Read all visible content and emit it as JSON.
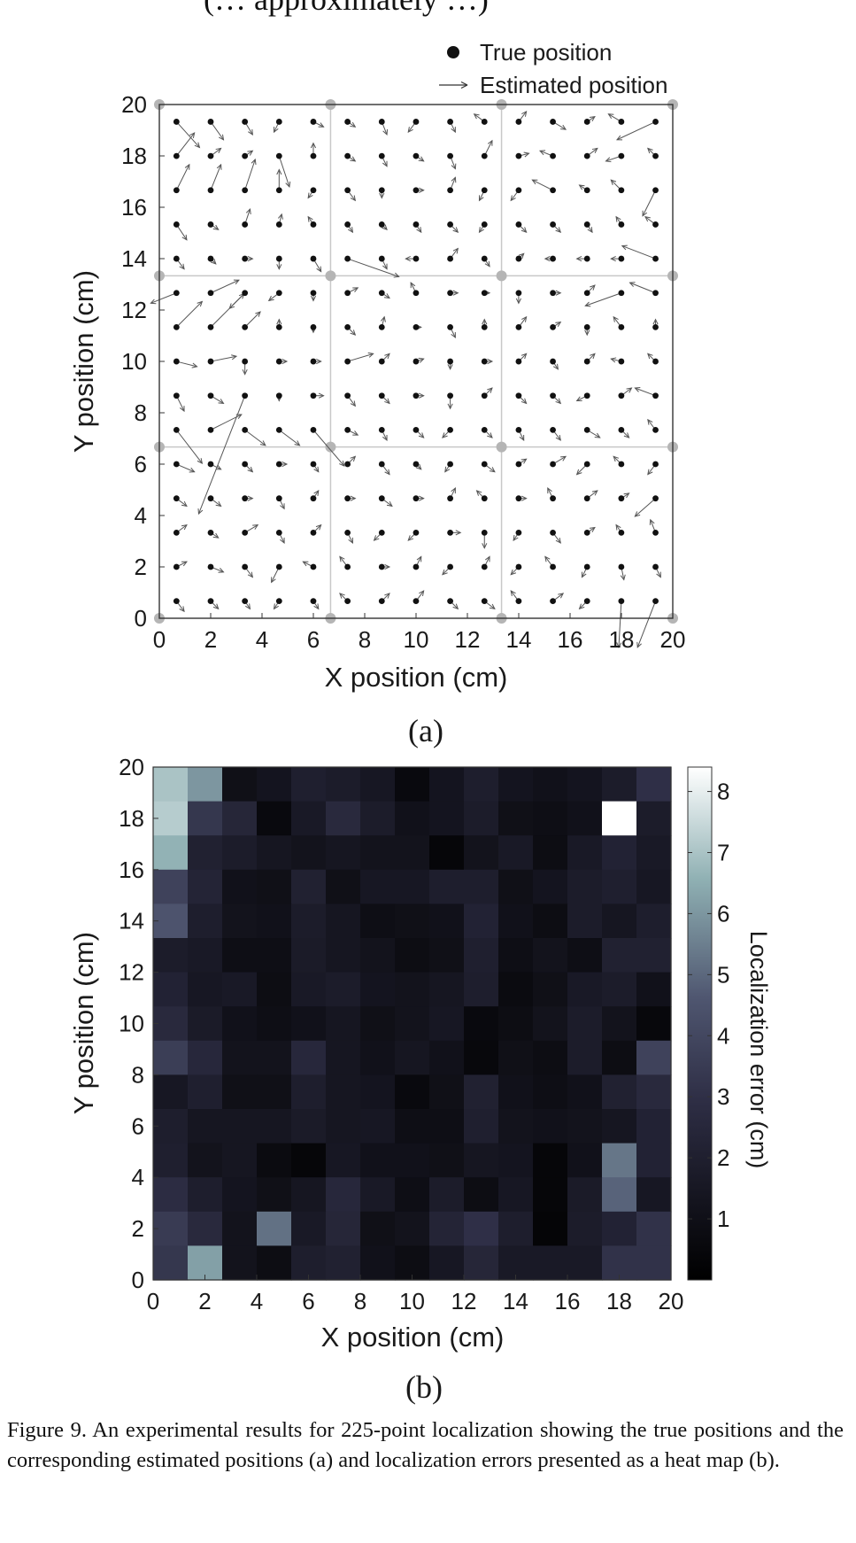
{
  "clipped_header": "(… approximately …)",
  "caption": "Figure 9.   An experimental results for 225-point localization showing the true positions and the corresponding estimated positions (a) and localization errors presented as a heat map (b).",
  "chart_data": [
    {
      "type": "scatter",
      "panel_label": "(a)",
      "title": "",
      "xlabel": "X position (cm)",
      "ylabel": "Y position (cm)",
      "xlim": [
        0,
        20
      ],
      "ylim": [
        0,
        20
      ],
      "xticks": [
        "0",
        "2",
        "4",
        "6",
        "8",
        "10",
        "12",
        "14",
        "16",
        "18",
        "20"
      ],
      "yticks": [
        "0",
        "2",
        "4",
        "6",
        "8",
        "10",
        "12",
        "14",
        "16",
        "18",
        "20"
      ],
      "grid_lines_cm": [
        6.67,
        13.33
      ],
      "legend": {
        "placement": "top-right",
        "entries": [
          "True position",
          "Estimated position"
        ]
      },
      "true_grid": {
        "n": 15,
        "start_cm": 0.667,
        "step_cm": 1.333
      },
      "estimated_offsets_cm": [
        [
          [
            0.9,
            -1.0
          ],
          [
            0.5,
            -0.7
          ],
          [
            0.3,
            -0.5
          ],
          [
            -0.2,
            -0.4
          ],
          [
            0.4,
            -0.2
          ],
          [
            0.3,
            -0.2
          ],
          [
            0.2,
            -0.5
          ],
          [
            -0.3,
            -0.4
          ],
          [
            0.2,
            -0.4
          ],
          [
            -0.4,
            0.3
          ],
          [
            0.3,
            0.4
          ],
          [
            0.5,
            -0.3
          ],
          [
            0.3,
            0.2
          ],
          [
            -0.5,
            0.3
          ],
          [
            -1.5,
            -0.7
          ]
        ],
        [
          [
            0.7,
            0.9
          ],
          [
            0.4,
            0.3
          ],
          [
            0.3,
            0.2
          ],
          [
            0.4,
            -1.2
          ],
          [
            0.0,
            0.5
          ],
          [
            0.3,
            -0.2
          ],
          [
            0.2,
            -0.4
          ],
          [
            0.3,
            -0.2
          ],
          [
            0.2,
            -0.5
          ],
          [
            0.3,
            0.6
          ],
          [
            0.4,
            0.1
          ],
          [
            -0.5,
            0.2
          ],
          [
            0.4,
            0.3
          ],
          [
            -0.6,
            -0.2
          ],
          [
            -0.3,
            0.3
          ]
        ],
        [
          [
            0.5,
            1.0
          ],
          [
            0.4,
            1.0
          ],
          [
            0.4,
            1.2
          ],
          [
            0.0,
            0.8
          ],
          [
            -0.2,
            -0.3
          ],
          [
            0.3,
            -0.4
          ],
          [
            0.0,
            -0.3
          ],
          [
            0.3,
            0.0
          ],
          [
            0.2,
            0.5
          ],
          [
            -0.2,
            -0.4
          ],
          [
            -0.3,
            -0.4
          ],
          [
            -0.8,
            0.4
          ],
          [
            -0.3,
            0.2
          ],
          [
            -0.4,
            0.4
          ],
          [
            -0.5,
            -1.0
          ]
        ],
        [
          [
            0.4,
            -0.6
          ],
          [
            0.3,
            -0.2
          ],
          [
            0.2,
            0.6
          ],
          [
            0.1,
            0.4
          ],
          [
            -0.2,
            0.3
          ],
          [
            0.2,
            -0.3
          ],
          [
            0.2,
            -0.2
          ],
          [
            0.2,
            -0.3
          ],
          [
            0.3,
            -0.3
          ],
          [
            -0.2,
            -0.3
          ],
          [
            0.3,
            -0.3
          ],
          [
            0.3,
            -0.3
          ],
          [
            0.2,
            -0.3
          ],
          [
            -0.2,
            0.3
          ],
          [
            -0.4,
            0.3
          ]
        ],
        [
          [
            0.3,
            -0.4
          ],
          [
            0.2,
            -0.2
          ],
          [
            0.3,
            0.0
          ],
          [
            0.0,
            -0.4
          ],
          [
            0.3,
            -0.5
          ],
          [
            2.0,
            -0.7
          ],
          [
            0.2,
            -0.4
          ],
          [
            -0.4,
            0.0
          ],
          [
            0.3,
            0.4
          ],
          [
            0.2,
            -0.3
          ],
          [
            0.2,
            0.2
          ],
          [
            -0.3,
            0.0
          ],
          [
            -0.4,
            0.0
          ],
          [
            -0.4,
            0.0
          ],
          [
            -1.3,
            0.5
          ]
        ],
        [
          [
            -1.0,
            -0.4
          ],
          [
            1.1,
            0.5
          ],
          [
            -0.6,
            -0.6
          ],
          [
            -0.4,
            -0.3
          ],
          [
            0.0,
            -0.3
          ],
          [
            0.4,
            0.2
          ],
          [
            0.3,
            -0.2
          ],
          [
            -0.2,
            0.4
          ],
          [
            0.3,
            0.0
          ],
          [
            0.2,
            0.0
          ],
          [
            0.0,
            -0.4
          ],
          [
            0.3,
            0.0
          ],
          [
            0.3,
            0.3
          ],
          [
            -1.4,
            -0.5
          ],
          [
            -1.0,
            0.4
          ]
        ],
        [
          [
            1.0,
            1.0
          ],
          [
            1.3,
            1.3
          ],
          [
            0.6,
            0.6
          ],
          [
            0.0,
            0.3
          ],
          [
            0.0,
            -0.2
          ],
          [
            0.3,
            -0.3
          ],
          [
            0.1,
            0.4
          ],
          [
            0.2,
            0.0
          ],
          [
            0.2,
            -0.4
          ],
          [
            0.0,
            0.3
          ],
          [
            0.3,
            0.4
          ],
          [
            0.3,
            0.2
          ],
          [
            0.0,
            -0.3
          ],
          [
            -0.3,
            0.4
          ],
          [
            0.0,
            0.3
          ]
        ],
        [
          [
            0.8,
            -0.2
          ],
          [
            1.0,
            0.2
          ],
          [
            0.0,
            -0.5
          ],
          [
            0.3,
            0.0
          ],
          [
            0.3,
            0.0
          ],
          [
            1.0,
            0.3
          ],
          [
            0.3,
            0.3
          ],
          [
            0.3,
            0.1
          ],
          [
            0.0,
            -0.3
          ],
          [
            0.3,
            0.0
          ],
          [
            0.3,
            0.3
          ],
          [
            0.2,
            -0.3
          ],
          [
            0.3,
            0.3
          ],
          [
            -0.4,
            0.1
          ],
          [
            -0.3,
            0.3
          ]
        ],
        [
          [
            0.3,
            -0.6
          ],
          [
            0.5,
            -0.3
          ],
          [
            -1.8,
            -4.6
          ],
          [
            0.0,
            -0.2
          ],
          [
            0.4,
            0.0
          ],
          [
            0.3,
            -0.4
          ],
          [
            0.3,
            -0.3
          ],
          [
            0.3,
            0.0
          ],
          [
            0.0,
            -0.5
          ],
          [
            0.3,
            0.3
          ],
          [
            0.3,
            -0.3
          ],
          [
            0.3,
            -0.3
          ],
          [
            -0.4,
            -0.2
          ],
          [
            0.4,
            0.3
          ],
          [
            -0.8,
            0.3
          ]
        ],
        [
          [
            1.0,
            -1.3
          ],
          [
            1.2,
            0.6
          ],
          [
            0.8,
            -0.6
          ],
          [
            0.8,
            -0.6
          ],
          [
            1.2,
            -1.4
          ],
          [
            0.4,
            -0.2
          ],
          [
            0.2,
            -0.4
          ],
          [
            0.3,
            -0.3
          ],
          [
            -0.3,
            -0.3
          ],
          [
            0.3,
            -0.3
          ],
          [
            0.2,
            -0.4
          ],
          [
            0.3,
            -0.4
          ],
          [
            0.5,
            -0.3
          ],
          [
            0.3,
            -0.3
          ],
          [
            -0.3,
            0.4
          ]
        ],
        [
          [
            0.7,
            -0.3
          ],
          [
            0.4,
            -0.2
          ],
          [
            0.3,
            -0.3
          ],
          [
            0.3,
            0.0
          ],
          [
            0.2,
            -0.3
          ],
          [
            0.3,
            0.3
          ],
          [
            0.3,
            -0.4
          ],
          [
            0.2,
            -0.2
          ],
          [
            -0.2,
            -0.3
          ],
          [
            0.4,
            -0.3
          ],
          [
            0.3,
            0.2
          ],
          [
            0.5,
            0.3
          ],
          [
            -0.4,
            -0.4
          ],
          [
            -0.3,
            0.3
          ],
          [
            -0.3,
            -0.4
          ]
        ],
        [
          [
            0.4,
            -0.3
          ],
          [
            0.4,
            -0.3
          ],
          [
            0.3,
            0.0
          ],
          [
            0.2,
            -0.4
          ],
          [
            0.2,
            0.3
          ],
          [
            0.3,
            0.0
          ],
          [
            0.4,
            -0.3
          ],
          [
            0.3,
            0.0
          ],
          [
            0.2,
            0.4
          ],
          [
            -0.3,
            0.3
          ],
          [
            0.3,
            0.0
          ],
          [
            -0.2,
            0.4
          ],
          [
            0.4,
            0.3
          ],
          [
            0.3,
            0.2
          ],
          [
            -0.8,
            -0.7
          ]
        ],
        [
          [
            0.4,
            0.3
          ],
          [
            0.3,
            -0.2
          ],
          [
            0.5,
            0.3
          ],
          [
            0.2,
            -0.4
          ],
          [
            0.3,
            0.3
          ],
          [
            0.2,
            -0.4
          ],
          [
            -0.3,
            -0.3
          ],
          [
            -0.3,
            -0.3
          ],
          [
            0.4,
            0.0
          ],
          [
            0.0,
            -0.6
          ],
          [
            -0.2,
            -0.3
          ],
          [
            0.3,
            -0.4
          ],
          [
            0.3,
            0.2
          ],
          [
            -0.2,
            0.3
          ],
          [
            -0.2,
            0.5
          ]
        ],
        [
          [
            0.4,
            0.2
          ],
          [
            0.5,
            -0.2
          ],
          [
            0.3,
            -0.4
          ],
          [
            -0.3,
            -0.6
          ],
          [
            -0.4,
            0.2
          ],
          [
            -0.3,
            0.4
          ],
          [
            0.3,
            0.0
          ],
          [
            0.2,
            0.4
          ],
          [
            -0.3,
            -0.3
          ],
          [
            0.2,
            0.4
          ],
          [
            -0.3,
            -0.3
          ],
          [
            -0.3,
            0.4
          ],
          [
            -0.2,
            -0.4
          ],
          [
            0.1,
            -0.5
          ],
          [
            0.2,
            -0.4
          ]
        ],
        [
          [
            0.3,
            -0.4
          ],
          [
            0.3,
            -0.3
          ],
          [
            0.2,
            -0.3
          ],
          [
            -0.2,
            -0.3
          ],
          [
            0.2,
            -0.3
          ],
          [
            -0.3,
            0.3
          ],
          [
            0.3,
            0.3
          ],
          [
            0.3,
            0.4
          ],
          [
            0.3,
            -0.3
          ],
          [
            0.4,
            -0.3
          ],
          [
            -0.3,
            0.4
          ],
          [
            0.4,
            0.3
          ],
          [
            -0.3,
            -0.3
          ],
          [
            -0.1,
            -1.8
          ],
          [
            -0.7,
            -1.8
          ]
        ]
      ]
    },
    {
      "type": "heatmap",
      "panel_label": "(b)",
      "title": "",
      "xlabel": "X position (cm)",
      "ylabel": "Y position (cm)",
      "xlim": [
        0,
        20
      ],
      "ylim": [
        0,
        20
      ],
      "xticks": [
        "0",
        "2",
        "4",
        "6",
        "8",
        "10",
        "12",
        "14",
        "16",
        "18",
        "20"
      ],
      "yticks": [
        "0",
        "2",
        "4",
        "6",
        "8",
        "10",
        "12",
        "14",
        "16",
        "18",
        "20"
      ],
      "colorbar": {
        "label": "Localization error (cm)",
        "range": [
          0,
          8.4
        ],
        "ticks": [
          "1",
          "2",
          "3",
          "4",
          "5",
          "6",
          "7",
          "8"
        ]
      },
      "values_top_to_bottom": [
        [
          7.0,
          6.0,
          1.0,
          1.3,
          2.0,
          1.8,
          1.5,
          0.6,
          1.3,
          1.9,
          1.3,
          1.1,
          1.3,
          1.8,
          3.0
        ],
        [
          7.2,
          3.3,
          2.4,
          0.6,
          1.6,
          2.6,
          1.8,
          1.1,
          1.3,
          1.8,
          1.0,
          0.9,
          1.1,
          8.4,
          1.8
        ],
        [
          6.6,
          2.1,
          1.8,
          1.4,
          1.2,
          1.4,
          1.2,
          1.2,
          0.4,
          1.2,
          1.6,
          0.8,
          1.6,
          2.2,
          1.6
        ],
        [
          3.8,
          2.3,
          1.1,
          1.0,
          2.1,
          1.0,
          1.5,
          1.5,
          1.9,
          1.9,
          1.0,
          1.3,
          1.8,
          2.0,
          1.5
        ],
        [
          4.5,
          1.9,
          1.2,
          1.1,
          1.8,
          1.4,
          0.9,
          1.0,
          1.1,
          2.2,
          1.1,
          0.8,
          1.8,
          1.4,
          1.9
        ],
        [
          1.8,
          1.6,
          0.9,
          0.9,
          1.7,
          1.4,
          1.2,
          0.8,
          1.0,
          2.0,
          0.9,
          1.2,
          0.9,
          2.1,
          2.1
        ],
        [
          2.2,
          1.5,
          1.6,
          0.8,
          1.6,
          1.8,
          1.3,
          1.2,
          1.4,
          1.9,
          0.7,
          1.0,
          1.6,
          1.8,
          1.1
        ],
        [
          2.6,
          1.7,
          1.1,
          0.9,
          1.1,
          1.4,
          1.0,
          1.2,
          1.5,
          0.6,
          0.8,
          1.2,
          1.8,
          1.2,
          0.5
        ],
        [
          3.6,
          2.5,
          1.2,
          1.2,
          2.5,
          1.4,
          1.1,
          1.4,
          1.1,
          0.5,
          1.0,
          0.8,
          1.8,
          0.8,
          3.8
        ],
        [
          1.5,
          2.0,
          1.0,
          1.0,
          1.9,
          1.4,
          1.3,
          0.6,
          1.0,
          2.1,
          1.1,
          0.9,
          1.1,
          2.1,
          2.6
        ],
        [
          1.9,
          1.4,
          1.4,
          1.4,
          1.7,
          1.4,
          1.5,
          0.9,
          0.9,
          2.0,
          1.2,
          1.1,
          1.2,
          1.4,
          2.2
        ],
        [
          2.0,
          1.2,
          1.4,
          0.7,
          0.4,
          1.5,
          1.1,
          1.1,
          1.0,
          1.4,
          1.3,
          0.4,
          1.1,
          5.3,
          2.2
        ],
        [
          2.8,
          1.9,
          1.3,
          1.0,
          1.4,
          2.5,
          1.6,
          0.9,
          1.8,
          0.8,
          1.5,
          0.4,
          1.7,
          4.9,
          1.5
        ],
        [
          3.5,
          2.6,
          1.2,
          5.2,
          1.6,
          2.4,
          1.0,
          1.2,
          2.3,
          3.0,
          1.9,
          0.3,
          1.8,
          2.2,
          3.1
        ],
        [
          3.3,
          6.2,
          1.2,
          0.8,
          1.9,
          2.1,
          1.1,
          0.8,
          1.5,
          2.4,
          1.6,
          1.6,
          1.6,
          3.1,
          3.1
        ]
      ]
    }
  ]
}
